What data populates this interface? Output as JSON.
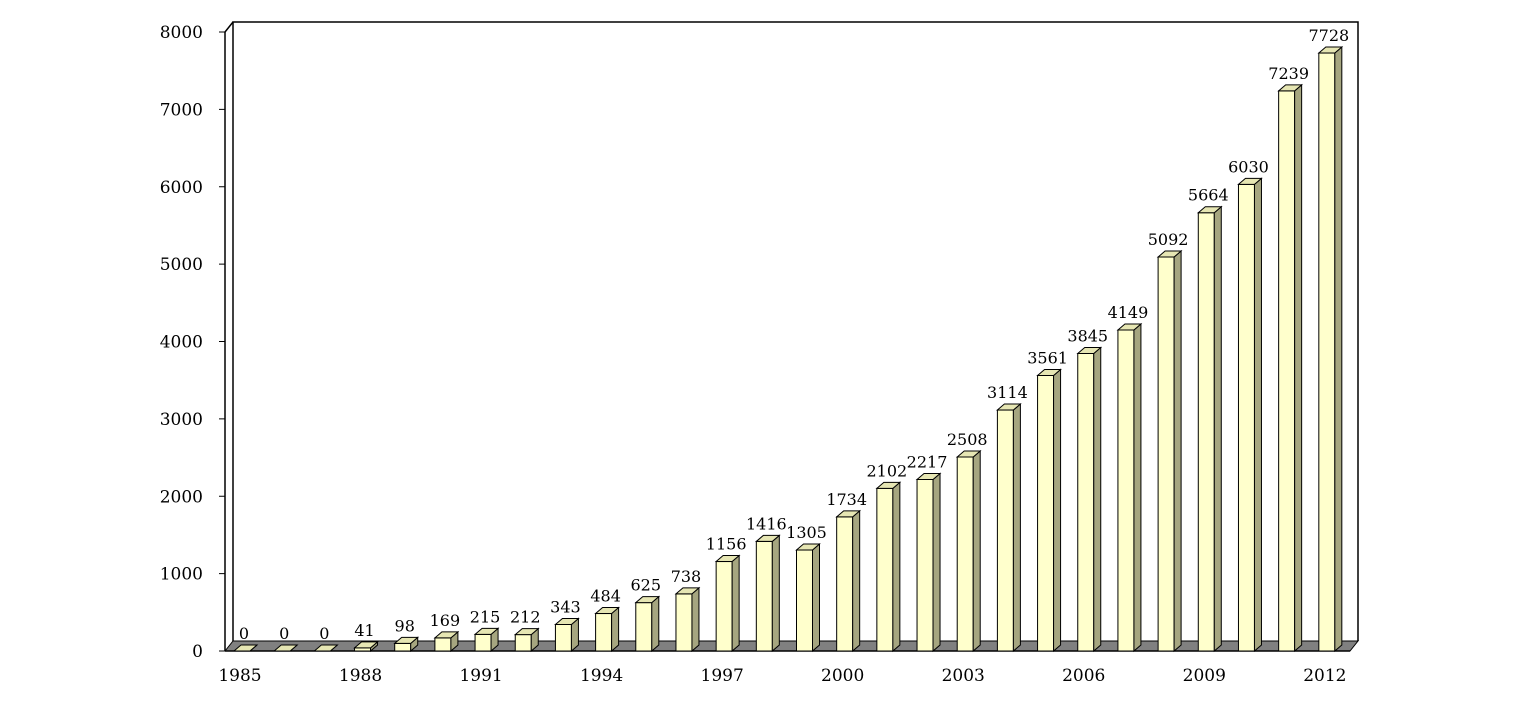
{
  "chart_data": {
    "type": "bar",
    "title": "",
    "xlabel": "",
    "ylabel": "",
    "ylim": [
      0,
      8000
    ],
    "yticks": [
      0,
      1000,
      2000,
      3000,
      4000,
      5000,
      6000,
      7000,
      8000
    ],
    "grid": false,
    "legend": "none",
    "style": "3d-column",
    "colors": {
      "bar_front": "#FFFFCC",
      "bar_side": "#A6A680",
      "bar_top": "#E6E6B3",
      "floor": "#808080",
      "axis": "#000000"
    },
    "categories": [
      "1985",
      "1986",
      "1987",
      "1988",
      "1989",
      "1990",
      "1991",
      "1992",
      "1993",
      "1994",
      "1995",
      "1996",
      "1997",
      "1998",
      "1999",
      "2000",
      "2001",
      "2002",
      "2003",
      "2004",
      "2005",
      "2006",
      "2007",
      "2008",
      "2009",
      "2010",
      "2011",
      "2012"
    ],
    "x_tick_labels": [
      "1985",
      "",
      "",
      "1988",
      "",
      "",
      "1991",
      "",
      "",
      "1994",
      "",
      "",
      "1997",
      "",
      "",
      "2000",
      "",
      "",
      "2003",
      "",
      "",
      "2006",
      "",
      "",
      "2009",
      "",
      "",
      "2012"
    ],
    "values": [
      0,
      0,
      0,
      41,
      98,
      169,
      215,
      212,
      343,
      484,
      625,
      738,
      1156,
      1416,
      1305,
      1734,
      2102,
      2217,
      2508,
      3114,
      3561,
      3845,
      4149,
      5092,
      5664,
      6030,
      7239,
      7728
    ],
    "data_labels": [
      "0",
      "0",
      "0",
      "41",
      "98",
      "169",
      "215",
      "212",
      "343",
      "484",
      "625",
      "738",
      "1156",
      "1416",
      "1305",
      "1734",
      "2102",
      "2217",
      "2508",
      "3114",
      "3561",
      "3845",
      "4149",
      "5092",
      "5664",
      "6030",
      "7239",
      "7728"
    ]
  }
}
